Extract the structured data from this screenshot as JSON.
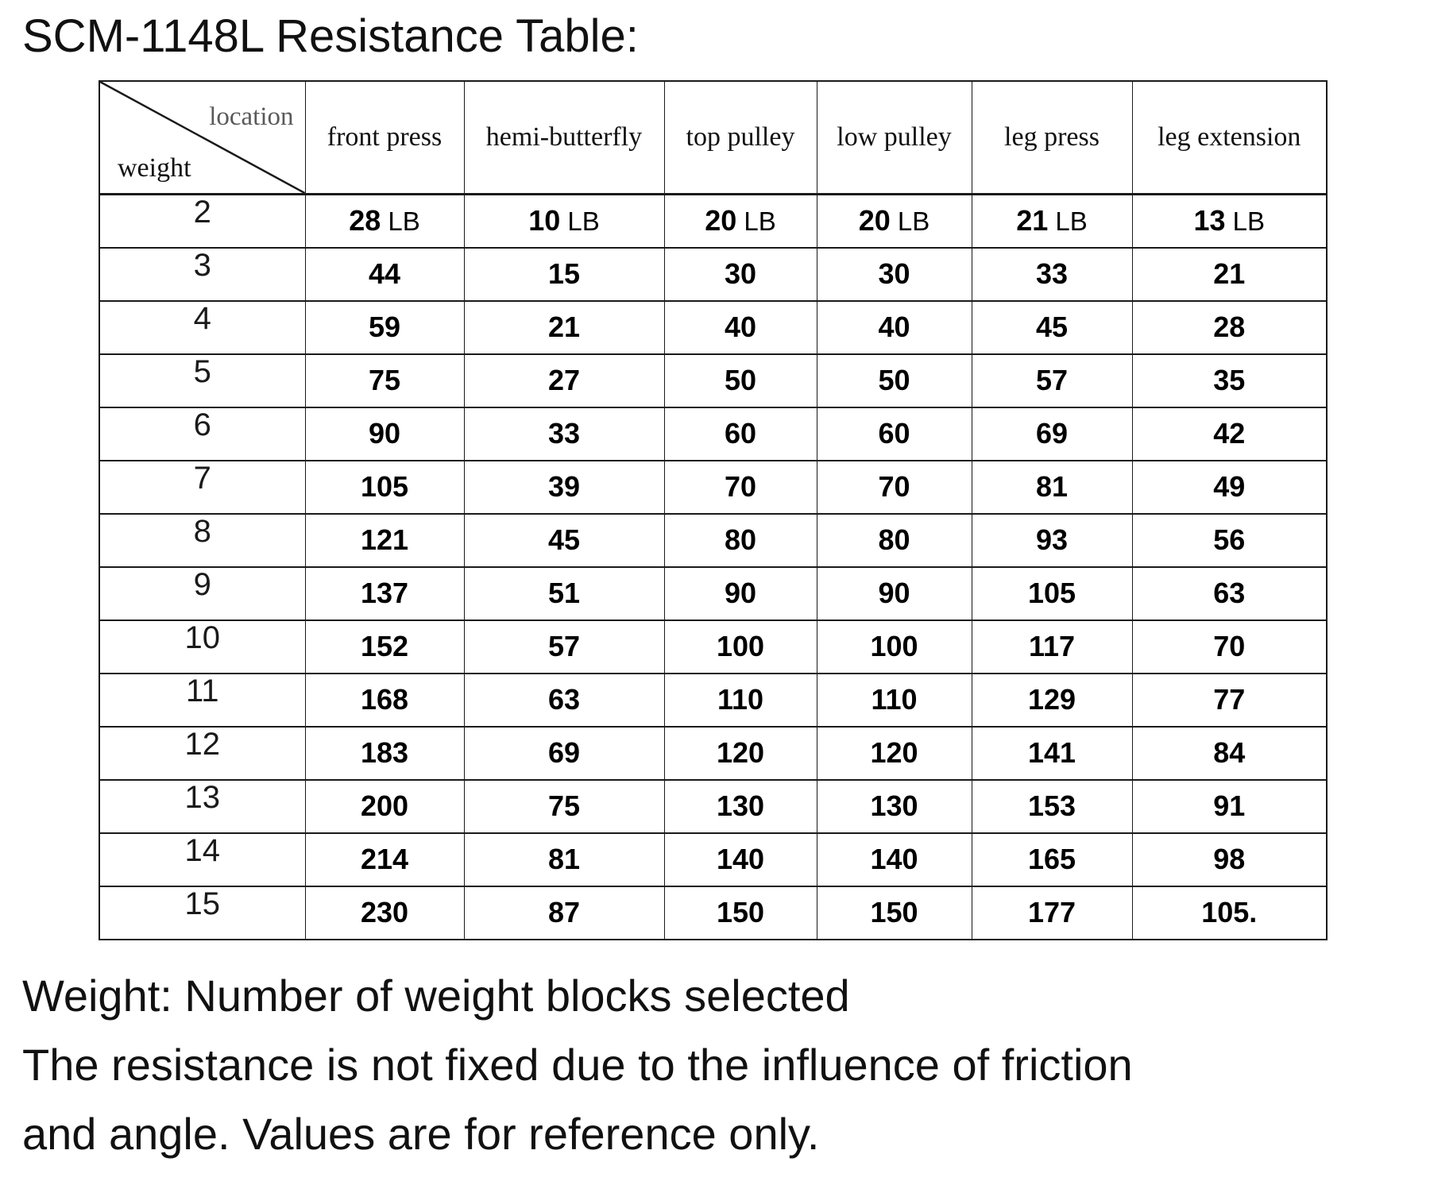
{
  "title": "SCM-1148L Resistance Table:",
  "table": {
    "corner": {
      "top_label": "location",
      "bottom_label": "weight",
      "top_label_color": "#595959"
    },
    "columns": [
      "front press",
      "hemi-butterfly",
      "top pulley",
      "low pulley",
      "leg press",
      "leg extension"
    ],
    "unit": "LB",
    "rows": [
      {
        "weight": "2",
        "show_unit": true,
        "values": [
          "28",
          "10",
          "20",
          "20",
          "21",
          "13"
        ]
      },
      {
        "weight": "3",
        "show_unit": false,
        "values": [
          "44",
          "15",
          "30",
          "30",
          "33",
          "21"
        ]
      },
      {
        "weight": "4",
        "show_unit": false,
        "values": [
          "59",
          "21",
          "40",
          "40",
          "45",
          "28"
        ]
      },
      {
        "weight": "5",
        "show_unit": false,
        "values": [
          "75",
          "27",
          "50",
          "50",
          "57",
          "35"
        ]
      },
      {
        "weight": "6",
        "show_unit": false,
        "values": [
          "90",
          "33",
          "60",
          "60",
          "69",
          "42"
        ]
      },
      {
        "weight": "7",
        "show_unit": false,
        "values": [
          "105",
          "39",
          "70",
          "70",
          "81",
          "49"
        ]
      },
      {
        "weight": "8",
        "show_unit": false,
        "values": [
          "121",
          "45",
          "80",
          "80",
          "93",
          "56"
        ]
      },
      {
        "weight": "9",
        "show_unit": false,
        "values": [
          "137",
          "51",
          "90",
          "90",
          "105",
          "63"
        ]
      },
      {
        "weight": "10",
        "show_unit": false,
        "values": [
          "152",
          "57",
          "100",
          "100",
          "117",
          "70"
        ]
      },
      {
        "weight": "11",
        "show_unit": false,
        "values": [
          "168",
          "63",
          "110",
          "110",
          "129",
          "77"
        ]
      },
      {
        "weight": "12",
        "show_unit": false,
        "values": [
          "183",
          "69",
          "120",
          "120",
          "141",
          "84"
        ]
      },
      {
        "weight": "13",
        "show_unit": false,
        "values": [
          "200",
          "75",
          "130",
          "130",
          "153",
          "91"
        ]
      },
      {
        "weight": "14",
        "show_unit": false,
        "values": [
          "214",
          "81",
          "140",
          "140",
          "165",
          "98"
        ]
      },
      {
        "weight": "15",
        "show_unit": false,
        "values": [
          "230",
          "87",
          "150",
          "150",
          "177",
          "105."
        ]
      }
    ]
  },
  "notes": [
    "Weight: Number of weight blocks selected",
    "The resistance is not fixed due to the influence of friction",
    "and angle. Values are for reference only."
  ]
}
